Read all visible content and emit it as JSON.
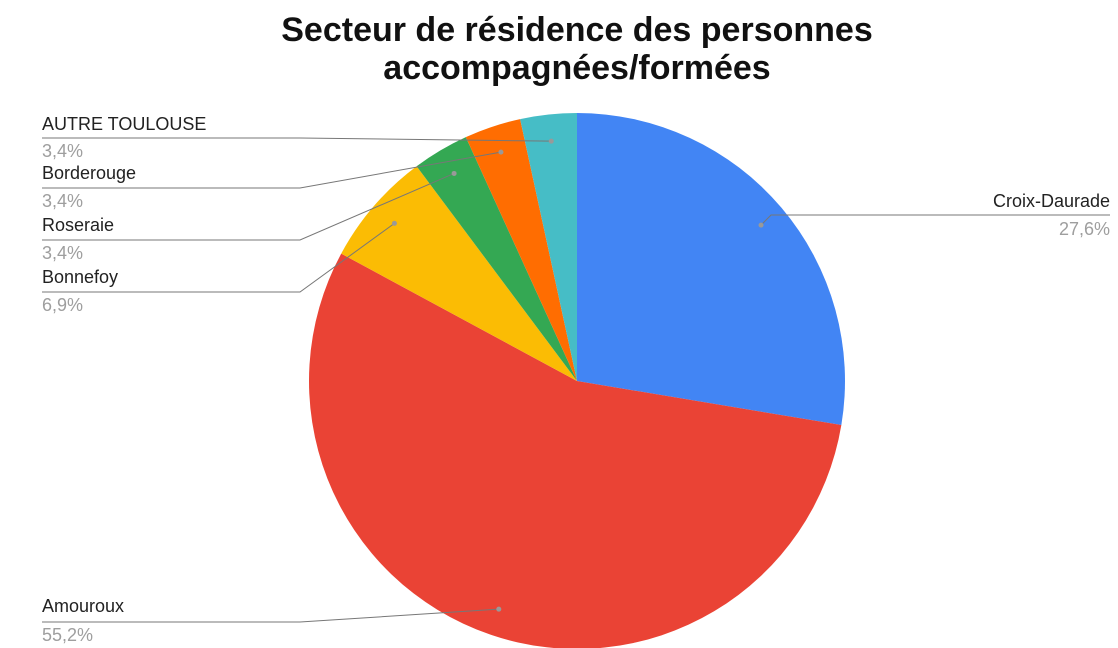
{
  "chart_data": {
    "type": "pie",
    "title": [
      "Secteur de résidence des personnes",
      "accompagnées/formées"
    ],
    "categories": [
      "Croix-Daurade",
      "Amouroux",
      "Bonnefoy",
      "Roseraie",
      "Borderouge",
      "AUTRE TOULOUSE"
    ],
    "values": [
      27.6,
      55.2,
      6.9,
      3.4,
      3.4,
      3.4
    ],
    "value_labels": [
      "27,6%",
      "55,2%",
      "6,9%",
      "3,4%",
      "3,4%",
      "3,4%"
    ],
    "colors": [
      "#4285f4",
      "#ea4335",
      "#fbbc04",
      "#34a853",
      "#ff6d01",
      "#46bdc6"
    ]
  }
}
